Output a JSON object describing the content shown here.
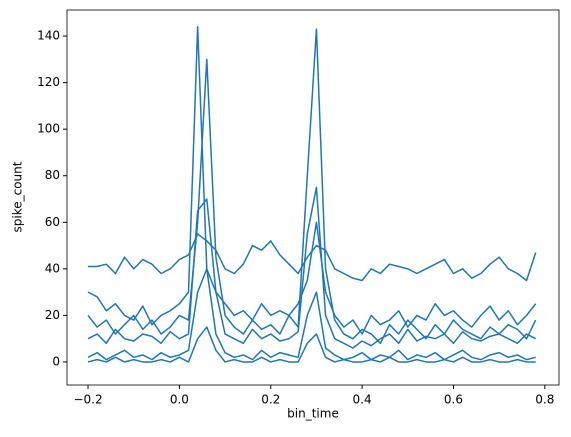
{
  "chart_data": {
    "type": "line",
    "xlabel": "bin_time",
    "ylabel": "spike_count",
    "x": [
      -0.2,
      -0.18,
      -0.16,
      -0.14,
      -0.12,
      -0.1,
      -0.08,
      -0.06,
      -0.04,
      -0.02,
      0,
      0.02,
      0.04,
      0.06,
      0.08,
      0.1,
      0.12,
      0.14,
      0.16,
      0.18,
      0.2,
      0.22,
      0.24,
      0.26,
      0.28,
      0.3,
      0.32,
      0.34,
      0.36,
      0.38,
      0.4,
      0.42,
      0.44,
      0.46,
      0.48,
      0.5,
      0.52,
      0.54,
      0.56,
      0.58,
      0.6,
      0.62,
      0.64,
      0.66,
      0.68,
      0.7,
      0.72,
      0.74,
      0.76,
      0.78
    ],
    "series": [
      {
        "color": "#1f77b4",
        "values": [
          41,
          41,
          42,
          38,
          45,
          40,
          44,
          42,
          38,
          40,
          44,
          46,
          55,
          52,
          48,
          40,
          38,
          42,
          50,
          48,
          52,
          46,
          42,
          38,
          45,
          50,
          48,
          40,
          38,
          36,
          35,
          40,
          38,
          42,
          41,
          40,
          38,
          40,
          42,
          44,
          38,
          40,
          36,
          38,
          42,
          45,
          40,
          38,
          35,
          47
        ]
      },
      {
        "color": "#1f77b4",
        "values": [
          30,
          28,
          22,
          25,
          20,
          18,
          24,
          16,
          20,
          22,
          25,
          30,
          144,
          40,
          30,
          25,
          20,
          22,
          18,
          25,
          20,
          22,
          20,
          25,
          35,
          60,
          30,
          20,
          15,
          18,
          12,
          20,
          16,
          18,
          22,
          15,
          20,
          18,
          25,
          20,
          22,
          18,
          15,
          20,
          24,
          18,
          22,
          16,
          20,
          25
        ]
      },
      {
        "color": "#1f77b4",
        "values": [
          20,
          15,
          18,
          12,
          16,
          20,
          14,
          18,
          12,
          15,
          20,
          18,
          60,
          130,
          45,
          20,
          15,
          12,
          18,
          14,
          16,
          12,
          20,
          15,
          80,
          143,
          40,
          18,
          12,
          10,
          14,
          12,
          8,
          16,
          12,
          18,
          14,
          10,
          16,
          12,
          18,
          14,
          12,
          10,
          15,
          12,
          16,
          14,
          10,
          18
        ]
      },
      {
        "color": "#1f77b4",
        "values": [
          10,
          12,
          8,
          14,
          10,
          9,
          12,
          11,
          8,
          13,
          10,
          12,
          65,
          70,
          30,
          12,
          10,
          8,
          14,
          10,
          12,
          9,
          10,
          13,
          55,
          75,
          20,
          10,
          8,
          6,
          9,
          7,
          10,
          12,
          8,
          14,
          9,
          11,
          10,
          12,
          8,
          13,
          10,
          9,
          11,
          12,
          10,
          8,
          12,
          10
        ]
      },
      {
        "color": "#1f77b4",
        "values": [
          2,
          4,
          1,
          3,
          5,
          2,
          3,
          1,
          4,
          2,
          3,
          5,
          30,
          40,
          12,
          4,
          2,
          3,
          1,
          5,
          2,
          4,
          3,
          2,
          20,
          30,
          6,
          3,
          1,
          2,
          4,
          1,
          3,
          2,
          5,
          1,
          3,
          2,
          4,
          1,
          3,
          5,
          2,
          1,
          3,
          4,
          2,
          3,
          1,
          2
        ]
      },
      {
        "color": "#1f77b4",
        "values": [
          0,
          1,
          0,
          2,
          0,
          1,
          0,
          0,
          1,
          0,
          2,
          0,
          10,
          15,
          5,
          0,
          1,
          0,
          0,
          2,
          0,
          1,
          0,
          0,
          8,
          12,
          2,
          0,
          1,
          0,
          0,
          1,
          0,
          2,
          0,
          0,
          1,
          0,
          0,
          1,
          0,
          2,
          0,
          0,
          1,
          0,
          0,
          1,
          0,
          0
        ]
      }
    ],
    "xlim": [
      -0.246,
      0.831
    ],
    "xticks": [
      {
        "value": -0.2,
        "label": "−0.2"
      },
      {
        "value": 0,
        "label": "0.0"
      },
      0.2,
      0.4,
      0.6,
      0.8
    ],
    "ylim": [
      -9.9,
      151.2
    ],
    "yticks": [
      0,
      20,
      40,
      60,
      80,
      100,
      120,
      140
    ]
  }
}
